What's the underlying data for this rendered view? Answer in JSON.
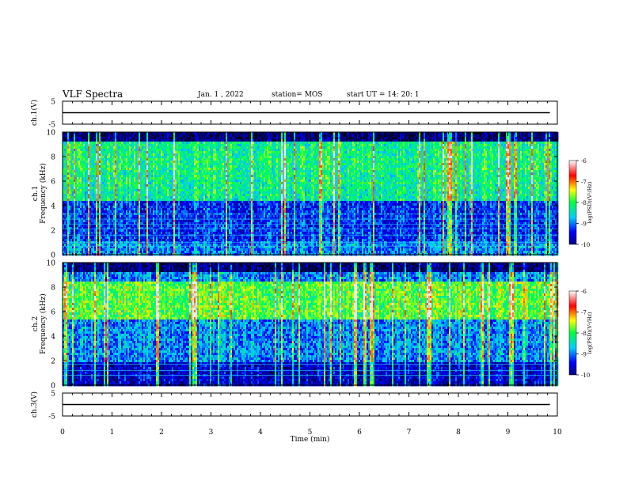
{
  "header": {
    "title": "VLF Spectra",
    "date": "Jan. 1 , 2022",
    "station": "station= MOS",
    "start": "start UT =  14: 20: 1"
  },
  "chart_data": [
    {
      "type": "line",
      "panel": "ch1-waveform",
      "ylabel": "ch.1(V)",
      "yticks": [
        "5",
        "-5"
      ],
      "ylim": [
        -5,
        5
      ],
      "x": [
        0,
        9.85
      ],
      "y": [
        0,
        0
      ]
    },
    {
      "type": "heatmap",
      "panel": "ch1-spectrogram",
      "ylabel_line1": "ch.1",
      "ylabel_line2": "Frequency (kHz)",
      "yticks": [
        "0",
        "2",
        "4",
        "6",
        "8",
        "10"
      ],
      "ylim": [
        0,
        10
      ],
      "xlim": [
        0,
        10
      ],
      "colorbar": {
        "label": "log(PSD)(V²/Hz)",
        "ticks": [
          "-6",
          "-7",
          "-8",
          "-9",
          "-10"
        ],
        "range": [
          -10,
          -6
        ]
      }
    },
    {
      "type": "heatmap",
      "panel": "ch2-spectrogram",
      "ylabel_line1": "ch.2",
      "ylabel_line2": "Frequency (kHz)",
      "yticks": [
        "0",
        "2",
        "4",
        "6",
        "8",
        "10"
      ],
      "ylim": [
        0,
        10
      ],
      "xlim": [
        0,
        10
      ],
      "colorbar": {
        "label": "log(PSD)(V²/Hz)",
        "ticks": [
          "-6",
          "-7",
          "-8",
          "-9",
          "-10"
        ],
        "range": [
          -10,
          -6
        ]
      }
    },
    {
      "type": "line",
      "panel": "ch3-waveform",
      "ylabel": "ch.3(V)",
      "yticks": [
        "5",
        "-5"
      ],
      "ylim": [
        -5,
        5
      ],
      "x": [
        0,
        9.85
      ],
      "y": [
        0,
        0
      ]
    }
  ],
  "xaxis": {
    "label": "Time (min)",
    "ticks": [
      "0",
      "1",
      "2",
      "3",
      "4",
      "5",
      "6",
      "7",
      "8",
      "9",
      "10"
    ],
    "xlim": [
      0,
      10
    ]
  }
}
